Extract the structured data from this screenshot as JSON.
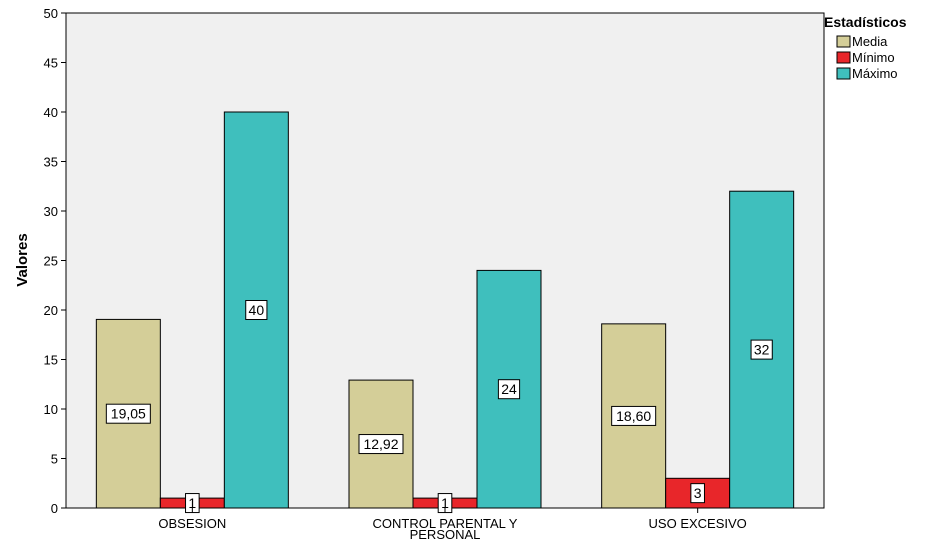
{
  "chart_data": {
    "type": "bar",
    "ylabel": "Valores",
    "xlabel": "",
    "ylim": [
      0,
      50
    ],
    "yticks": [
      0,
      5,
      10,
      15,
      20,
      25,
      30,
      35,
      40,
      45,
      50
    ],
    "grid": false,
    "categories": [
      [
        "OBSESION"
      ],
      [
        "CONTROL PARENTAL Y",
        "PERSONAL"
      ],
      [
        "USO EXCESIVO"
      ]
    ],
    "series": [
      {
        "name": "Media",
        "color": "#d4ce98",
        "values": [
          19.05,
          12.92,
          18.6
        ],
        "labels": [
          "19,05",
          "12,92",
          "18,60"
        ]
      },
      {
        "name": "Mínimo",
        "color": "#e8262a",
        "values": [
          1,
          1,
          3
        ],
        "labels": [
          "1",
          "1",
          "3"
        ]
      },
      {
        "name": "Máximo",
        "color": "#3fbfbd",
        "values": [
          40,
          24,
          32
        ],
        "labels": [
          "40",
          "24",
          "32"
        ]
      }
    ],
    "legend": {
      "title": "Estadísticos",
      "position": "right"
    },
    "background_color": "#f0f0f0"
  }
}
